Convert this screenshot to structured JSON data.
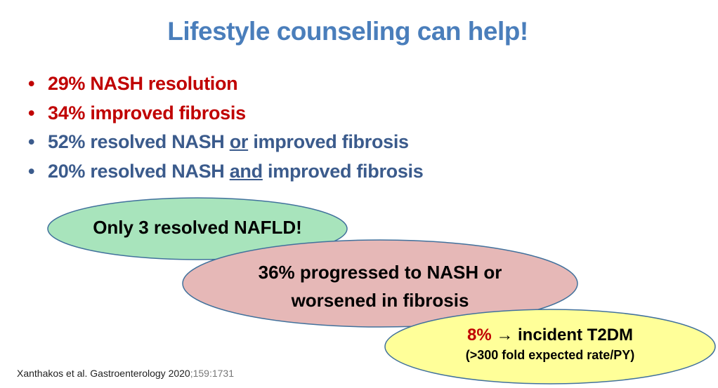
{
  "title": "Lifestyle counseling can help!",
  "bullets": [
    {
      "text": "29% NASH resolution",
      "color": "#c00000"
    },
    {
      "text": "34% improved fibrosis",
      "color": "#c00000"
    },
    {
      "pre": "52% resolved NASH ",
      "emph": "or",
      "post": " improved fibrosis",
      "color": "#3b5b8c"
    },
    {
      "pre": "20% resolved NASH ",
      "emph": "and",
      "post": " improved fibrosis",
      "color": "#3b5b8c"
    }
  ],
  "bullet_glyph": "•",
  "callouts": {
    "green": {
      "text": "Only 3 resolved NAFLD!",
      "fill": "#a8e4bc"
    },
    "pink": {
      "line1": "36% progressed to NASH or",
      "line2": "worsened in fibrosis",
      "fill": "#e6b8b7"
    },
    "yellow": {
      "pct": "8%",
      "arrow": "→",
      "rest": " incident T2DM",
      "sub": "(>300 fold expected rate/PY)",
      "fill": "#ffff99"
    }
  },
  "citation": {
    "text": "Xanthakos et al. Gastroenterology 2020",
    "pages": ";159:1731"
  }
}
